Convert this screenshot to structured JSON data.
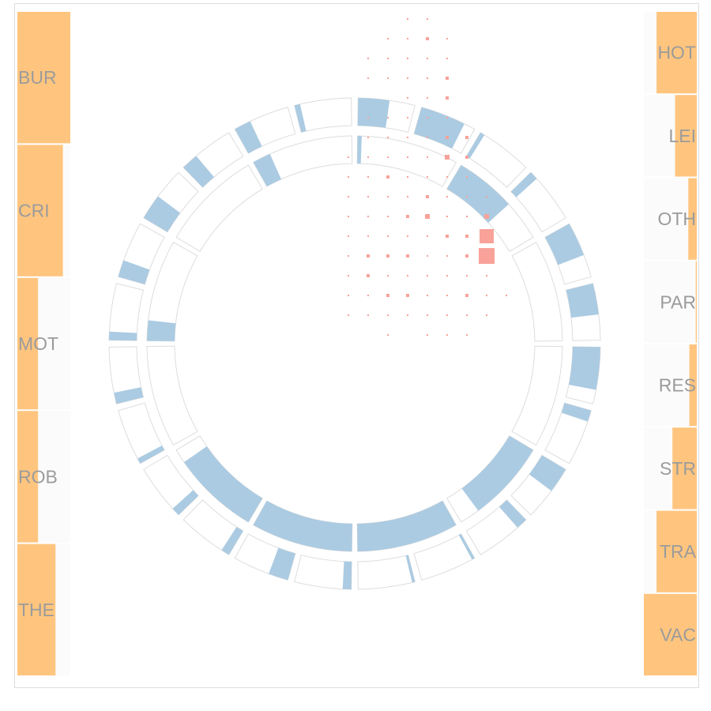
{
  "colors": {
    "bar": "#ffc57f",
    "bar_track": "#fbfbfb",
    "ring_fill": "#abcbe2",
    "ring_track": "#dddddd",
    "dot": "#f8a29a",
    "label": "#9b9b9b",
    "frame": "#dddddd"
  },
  "chart_data": [
    {
      "type": "bar",
      "orientation": "horizontal",
      "side": "left",
      "categories": [
        "BUR",
        "CRI",
        "MOT",
        "ROB",
        "THE"
      ],
      "values": [
        1.0,
        0.86,
        0.39,
        0.39,
        0.72
      ]
    },
    {
      "type": "bar",
      "orientation": "horizontal",
      "side": "right",
      "categories": [
        "HOT",
        "LEI",
        "OTH",
        "PAR",
        "RES",
        "STR",
        "TRA",
        "VAC"
      ],
      "values": [
        0.76,
        0.41,
        0.16,
        0.02,
        0.14,
        0.46,
        0.76,
        1.0
      ]
    },
    {
      "type": "radial-bar",
      "ring": "outer",
      "segments": 24,
      "values": [
        0.55,
        0.8,
        0.08,
        0.15,
        0.6,
        0.55,
        0.75,
        0.2,
        0.45,
        0.2,
        0.05,
        0.05,
        0.15,
        0.35,
        0.15,
        0.15,
        0.1,
        0.2,
        0.15,
        0.3,
        0.45,
        0.3,
        0.3,
        0.1
      ]
    },
    {
      "type": "radial-bar",
      "ring": "inner",
      "segments": 12,
      "values": [
        0.04,
        0.6,
        0.0,
        0.0,
        0.8,
        1.0,
        1.0,
        0.86,
        0.0,
        0.2,
        0.0,
        0.18
      ]
    },
    {
      "type": "heatmap",
      "rows": 17,
      "cols": 9,
      "values": [
        [
          0,
          0,
          0,
          1,
          1,
          0,
          0,
          0,
          0
        ],
        [
          0,
          0,
          1,
          1,
          2,
          1,
          0,
          0,
          0
        ],
        [
          0,
          1,
          1,
          1,
          1,
          1,
          0,
          0,
          0
        ],
        [
          0,
          1,
          1,
          1,
          1,
          2,
          0,
          0,
          0
        ],
        [
          0,
          0,
          0,
          1,
          1,
          2,
          0,
          0,
          0
        ],
        [
          0,
          1,
          1,
          1,
          1,
          1,
          0,
          0,
          0
        ],
        [
          0,
          1,
          1,
          1,
          1,
          2,
          2,
          0,
          0
        ],
        [
          1,
          1,
          1,
          1,
          1,
          3,
          2,
          0,
          0
        ],
        [
          1,
          1,
          2,
          1,
          1,
          1,
          1,
          0,
          0
        ],
        [
          1,
          1,
          1,
          1,
          2,
          1,
          1,
          1,
          0
        ],
        [
          1,
          1,
          1,
          2,
          3,
          1,
          1,
          3,
          0
        ],
        [
          1,
          1,
          1,
          1,
          1,
          2,
          2,
          6,
          0
        ],
        [
          1,
          2,
          2,
          2,
          1,
          1,
          2,
          7,
          0
        ],
        [
          1,
          2,
          1,
          1,
          1,
          1,
          1,
          1,
          0
        ],
        [
          1,
          1,
          2,
          2,
          1,
          1,
          2,
          1,
          1
        ],
        [
          1,
          1,
          1,
          1,
          1,
          1,
          1,
          1,
          0
        ],
        [
          0,
          0,
          1,
          0,
          1,
          1,
          1,
          0,
          0
        ]
      ]
    }
  ]
}
